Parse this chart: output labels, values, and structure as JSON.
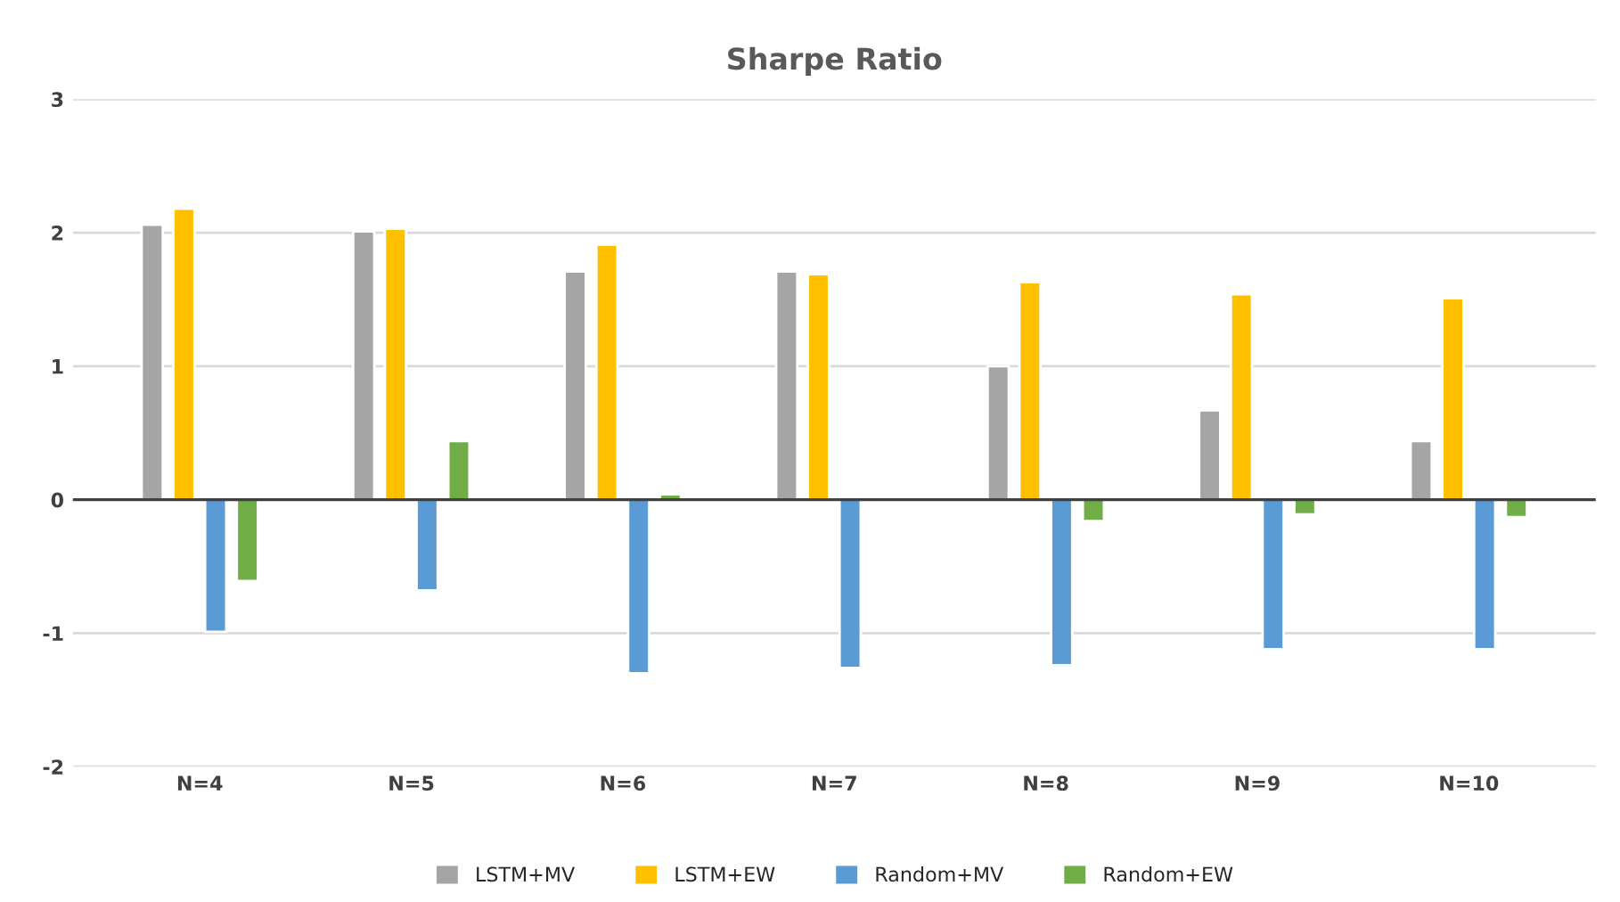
{
  "chart_data": {
    "type": "bar",
    "title": "Sharpe Ratio",
    "categories": [
      "N=4",
      "N=5",
      "N=6",
      "N=7",
      "N=8",
      "N=9",
      "N=10"
    ],
    "series": [
      {
        "name": "LSTM+MV",
        "color": "#a5a5a5",
        "values": [
          2.06,
          2.01,
          1.71,
          1.71,
          1.0,
          0.67,
          0.44
        ]
      },
      {
        "name": "LSTM+EW",
        "color": "#ffc000",
        "values": [
          2.18,
          2.03,
          1.91,
          1.69,
          1.63,
          1.54,
          1.51
        ]
      },
      {
        "name": "Random+MV",
        "color": "#5b9bd5",
        "values": [
          -0.99,
          -0.68,
          -1.3,
          -1.26,
          -1.24,
          -1.12,
          -1.12
        ]
      },
      {
        "name": "Random+EW",
        "color": "#70ad47",
        "values": [
          -0.61,
          0.44,
          0.04,
          null,
          -0.16,
          -0.11,
          -0.13
        ]
      }
    ],
    "ylim": [
      -2,
      3
    ],
    "yticks": [
      {
        "value": -2,
        "label": "-2"
      },
      {
        "value": -1,
        "label": "-1"
      },
      0,
      1,
      2,
      3
    ],
    "grid": "y",
    "legend": "bottom"
  }
}
